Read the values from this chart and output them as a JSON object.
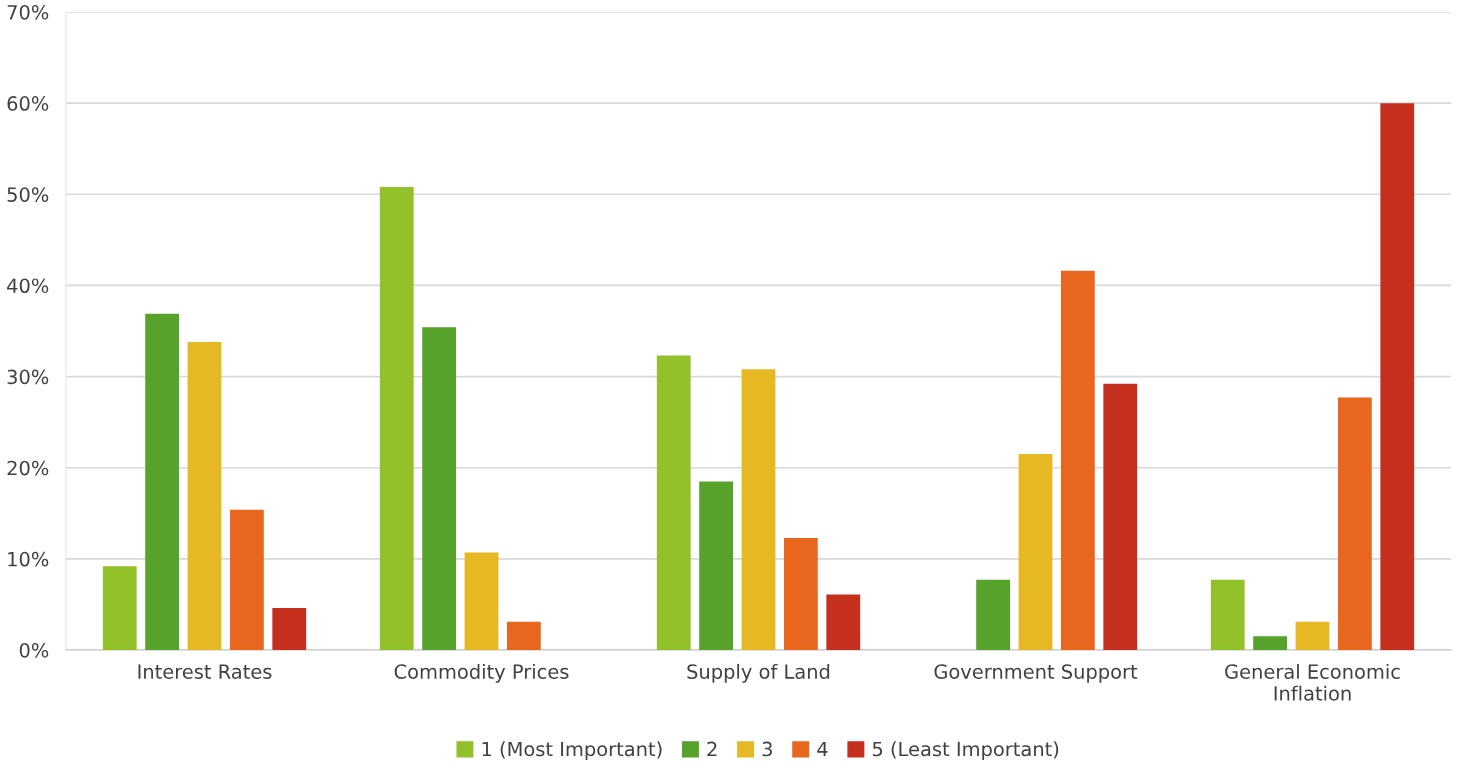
{
  "chart_data": {
    "type": "bar",
    "categories": [
      "Interest Rates",
      "Commodity Prices",
      "Supply of Land",
      "Government Support",
      "General Economic\nInflation"
    ],
    "series": [
      {
        "name": "1 (Most Important)",
        "color": "#92c12a",
        "values": [
          9.2,
          50.8,
          32.3,
          0,
          7.7
        ]
      },
      {
        "name": "2",
        "color": "#56a22a",
        "values": [
          36.9,
          35.4,
          18.5,
          7.7,
          1.5
        ]
      },
      {
        "name": "3",
        "color": "#e5b824",
        "values": [
          33.8,
          10.7,
          30.8,
          21.5,
          3.1
        ]
      },
      {
        "name": "4",
        "color": "#e8661e",
        "values": [
          15.4,
          3.1,
          12.3,
          41.6,
          27.7
        ]
      },
      {
        "name": "5 (Least Important)",
        "color": "#c42f1e",
        "values": [
          4.6,
          0,
          6.1,
          29.2,
          60
        ]
      }
    ],
    "ylim": [
      0,
      70
    ],
    "yticks": [
      {
        "value": 0,
        "label": "0%"
      },
      {
        "value": 10,
        "label": "10%"
      },
      {
        "value": 20,
        "label": "20%"
      },
      {
        "value": 30,
        "label": "30%"
      },
      {
        "value": 40,
        "label": "40%"
      },
      {
        "value": 50,
        "label": "50%"
      },
      {
        "value": 60,
        "label": "60%"
      },
      {
        "value": 70,
        "label": "70%"
      }
    ],
    "grid": "y",
    "legend": "bottom"
  }
}
